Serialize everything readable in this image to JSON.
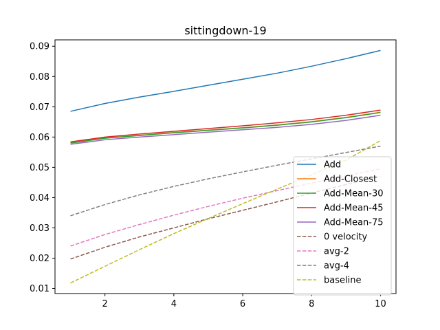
{
  "chart_data": {
    "type": "line",
    "title": "sittingdown-19",
    "xlabel": "",
    "ylabel": "",
    "xlim": [
      0.55,
      10.45
    ],
    "ylim": [
      0.0083,
      0.0921
    ],
    "xticks": [
      2,
      4,
      6,
      8,
      10
    ],
    "yticks": [
      0.01,
      0.02,
      0.03,
      0.04,
      0.05,
      0.06,
      0.07,
      0.08,
      0.09
    ],
    "xtick_labels": [
      "2",
      "4",
      "6",
      "8",
      "10"
    ],
    "ytick_labels": [
      "0.01",
      "0.02",
      "0.03",
      "0.04",
      "0.05",
      "0.06",
      "0.07",
      "0.08",
      "0.09"
    ],
    "grid": false,
    "legend_position": "lower-right",
    "x": [
      1,
      2,
      3,
      4,
      5,
      6,
      7,
      8,
      9,
      10
    ],
    "series": [
      {
        "name": "Add",
        "color": "#1f77b4",
        "dash": "solid",
        "values": [
          0.0685,
          0.0711,
          0.0732,
          0.0751,
          0.0771,
          0.0791,
          0.0811,
          0.0834,
          0.0859,
          0.0886
        ]
      },
      {
        "name": "Add-Closest",
        "color": "#ff7f0e",
        "dash": "solid",
        "values": [
          0.0581,
          0.0597,
          0.0606,
          0.0615,
          0.0623,
          0.0631,
          0.064,
          0.0651,
          0.0665,
          0.0682
        ]
      },
      {
        "name": "Add-Mean-30",
        "color": "#2ca02c",
        "dash": "solid",
        "values": [
          0.058,
          0.0596,
          0.0605,
          0.0614,
          0.0622,
          0.063,
          0.0639,
          0.065,
          0.0664,
          0.0681
        ]
      },
      {
        "name": "Add-Mean-45",
        "color": "#d62728",
        "dash": "solid",
        "values": [
          0.0584,
          0.06,
          0.061,
          0.0619,
          0.0628,
          0.0637,
          0.0647,
          0.0658,
          0.0672,
          0.0689
        ]
      },
      {
        "name": "Add-Mean-75",
        "color": "#9467bd",
        "dash": "solid",
        "values": [
          0.0576,
          0.0591,
          0.06,
          0.0608,
          0.0616,
          0.0624,
          0.0632,
          0.0642,
          0.0655,
          0.0672
        ]
      },
      {
        "name": "0 velocity",
        "color": "#8c564b",
        "dash": "dashed",
        "values": [
          0.0197,
          0.0236,
          0.027,
          0.03,
          0.033,
          0.0358,
          0.0386,
          0.0415,
          0.0443,
          0.047
        ]
      },
      {
        "name": "avg-2",
        "color": "#e377c2",
        "dash": "dashed",
        "values": [
          0.024,
          0.0278,
          0.0311,
          0.0342,
          0.0371,
          0.0398,
          0.0423,
          0.0448,
          0.0472,
          0.0495
        ]
      },
      {
        "name": "avg-4",
        "color": "#7f7f7f",
        "dash": "dashed",
        "values": [
          0.034,
          0.0377,
          0.0409,
          0.0437,
          0.0462,
          0.0485,
          0.0507,
          0.0528,
          0.0549,
          0.057
        ]
      },
      {
        "name": "baseline",
        "color": "#bcbd22",
        "dash": "dashed",
        "values": [
          0.0118,
          0.0173,
          0.0228,
          0.0281,
          0.0331,
          0.038,
          0.0428,
          0.0475,
          0.0524,
          0.0588
        ]
      }
    ]
  }
}
